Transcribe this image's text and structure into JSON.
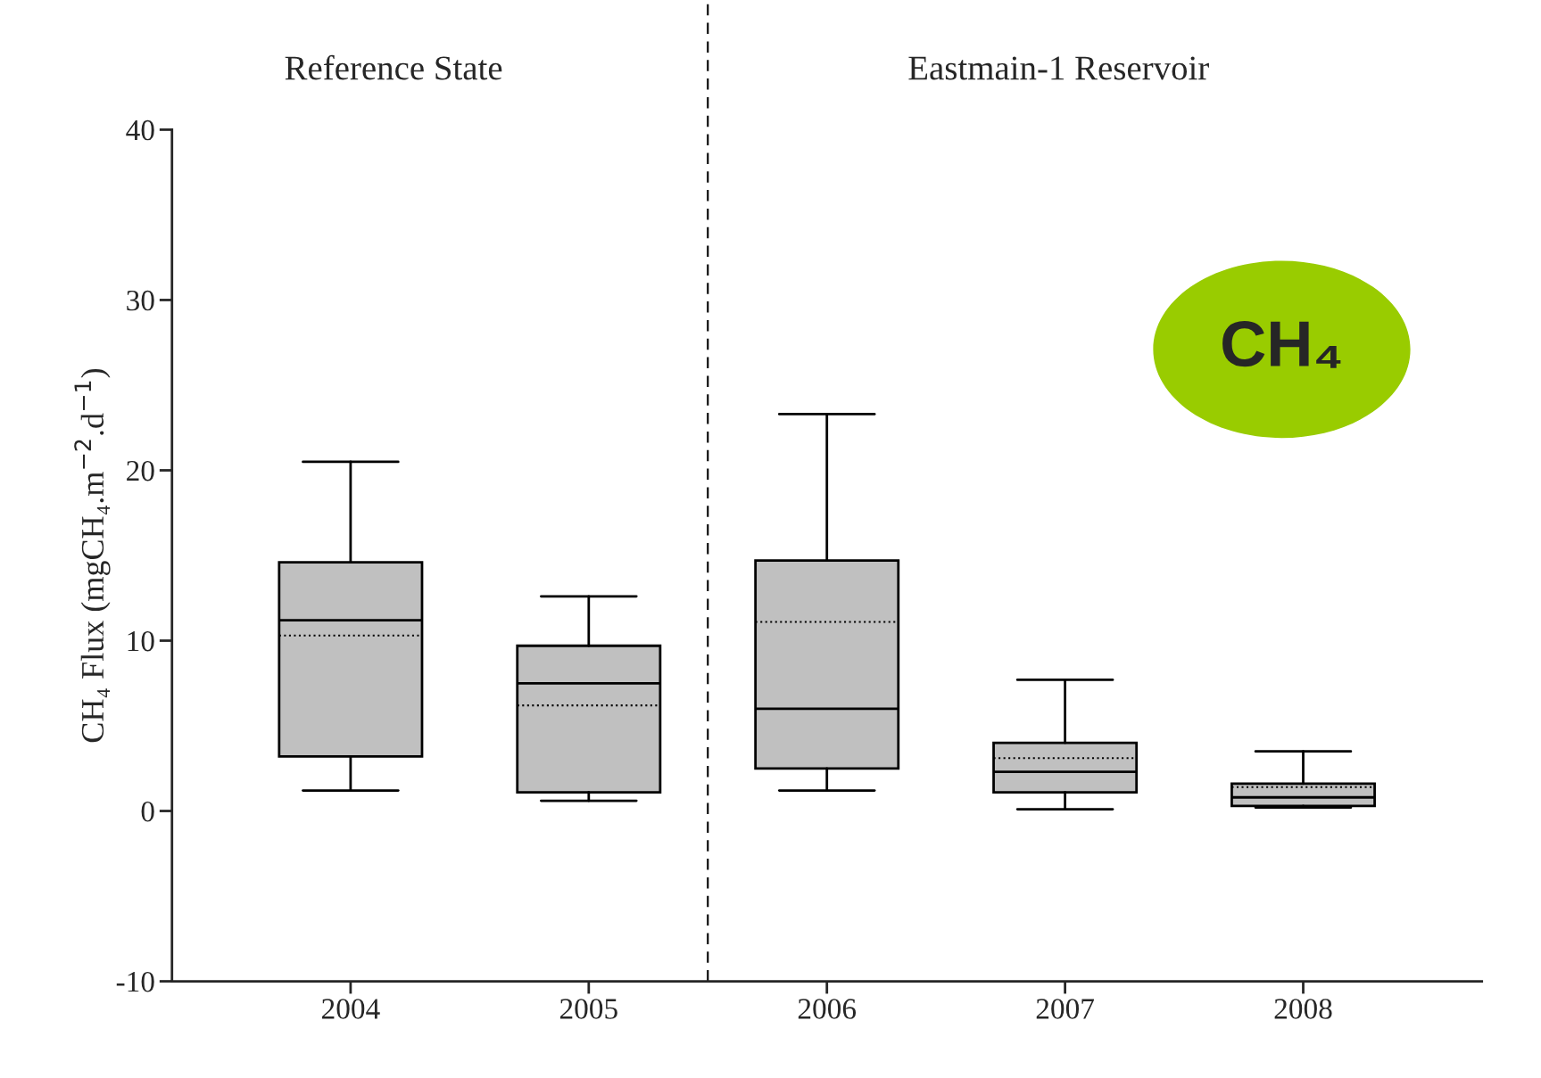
{
  "chart_data": {
    "type": "box",
    "ylabel": "CH₄ Flux (mgCH₄.m$^{−2}$.d$^{−1}$)",
    "categories": [
      "2004",
      "2005",
      "2006",
      "2007",
      "2008"
    ],
    "boxes": [
      {
        "low": 1.2,
        "q1": 3.2,
        "median": 11.2,
        "q3": 14.6,
        "high": 20.5,
        "mean": 10.3
      },
      {
        "low": 0.6,
        "q1": 1.1,
        "median": 7.5,
        "q3": 9.7,
        "high": 12.6,
        "mean": 6.2
      },
      {
        "low": 1.2,
        "q1": 2.5,
        "median": 6.0,
        "q3": 14.7,
        "high": 23.3,
        "mean": 11.1
      },
      {
        "low": 0.1,
        "q1": 1.1,
        "median": 2.3,
        "q3": 4.0,
        "high": 7.7,
        "mean": 3.1
      },
      {
        "low": 0.2,
        "q1": 0.3,
        "median": 0.8,
        "q3": 1.6,
        "high": 3.5,
        "mean": 1.4
      }
    ],
    "color": "#c0c0c0",
    "ylim": [
      -10,
      40
    ],
    "yticks": [
      -10,
      0,
      10,
      20,
      30,
      40
    ],
    "grid": false,
    "legend": false,
    "annotations": [
      "Reference State",
      "Eastmain-1 Reservoir",
      "CH₄"
    ]
  }
}
